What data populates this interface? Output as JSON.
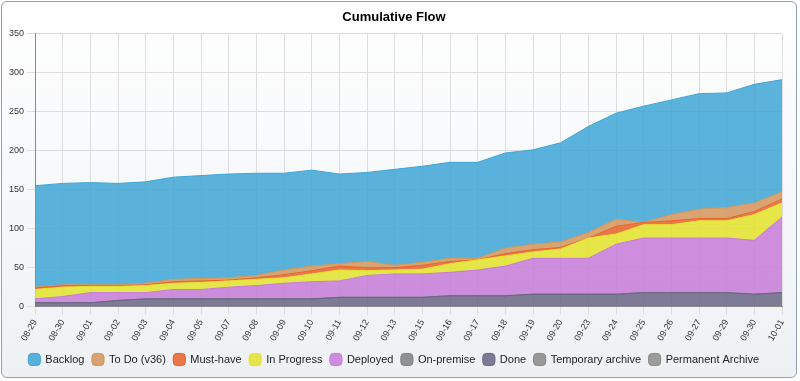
{
  "chart_data": {
    "type": "area",
    "title": "Cumulative Flow",
    "stacked": true,
    "grid": true,
    "legend": "bottom",
    "categories": [
      "08-29",
      "08-30",
      "09-01",
      "09-02",
      "09-03",
      "09-04",
      "09-05",
      "09-07",
      "09-08",
      "09-09",
      "09-10",
      "09-11",
      "09-12",
      "09-13",
      "09-15",
      "09-16",
      "09-17",
      "09-18",
      "09-19",
      "09-20",
      "09-23",
      "09-24",
      "09-25",
      "09-26",
      "09-27",
      "09-29",
      "09-30",
      "10-01"
    ],
    "ylim": [
      0,
      350
    ],
    "yticks": [
      0,
      50,
      100,
      150,
      200,
      250,
      300,
      350
    ],
    "series": [
      {
        "name": "Backlog",
        "color": "#3ea6d6",
        "values": [
          130,
          130,
          131,
          130,
          130,
          131,
          132,
          133,
          131,
          124,
          123,
          115,
          114,
          123,
          123,
          123,
          123,
          122,
          121,
          127,
          136,
          136,
          149,
          147,
          148,
          147,
          152,
          144
        ]
      },
      {
        "name": "To Do (v36)",
        "color": "#d4955a",
        "values": [
          1,
          1,
          1,
          1,
          2,
          3,
          3,
          3,
          3,
          6,
          6,
          3,
          8,
          3,
          4,
          4,
          2,
          7,
          7,
          7,
          7,
          9,
          0,
          8,
          12,
          14,
          11,
          9
        ]
      },
      {
        "name": "Must-have",
        "color": "#e8622a",
        "values": [
          2,
          2,
          1,
          1,
          1,
          2,
          2,
          1,
          2,
          4,
          4,
          5,
          4,
          3,
          5,
          3,
          0,
          3,
          3,
          2,
          0,
          10,
          3,
          5,
          3,
          3,
          4,
          5
        ]
      },
      {
        "name": "In Progress",
        "color": "#e3e32a",
        "values": [
          12,
          12,
          8,
          8,
          9,
          8,
          9,
          8,
          8,
          7,
          10,
          14,
          6,
          5,
          6,
          11,
          13,
          13,
          8,
          12,
          26,
          13,
          17,
          17,
          22,
          22,
          33,
          18
        ]
      },
      {
        "name": "Deployed",
        "color": "#c77ad8",
        "values": [
          5,
          8,
          13,
          10,
          8,
          12,
          12,
          15,
          17,
          20,
          22,
          21,
          28,
          30,
          30,
          30,
          33,
          38,
          46,
          46,
          46,
          64,
          70,
          70,
          70,
          70,
          69,
          97
        ]
      },
      {
        "name": "On-premise",
        "color": "#808080",
        "values": [
          0,
          0,
          0,
          0,
          0,
          0,
          0,
          0,
          0,
          0,
          0,
          0,
          0,
          0,
          0,
          0,
          0,
          0,
          0,
          0,
          0,
          0,
          0,
          0,
          0,
          0,
          0,
          0
        ]
      },
      {
        "name": "Done",
        "color": "#6a6585",
        "values": [
          5,
          5,
          5,
          8,
          10,
          10,
          10,
          10,
          10,
          10,
          10,
          12,
          12,
          12,
          12,
          14,
          14,
          14,
          16,
          16,
          16,
          16,
          18,
          18,
          18,
          18,
          16,
          18
        ]
      },
      {
        "name": "Temporary archive",
        "color": "#888888",
        "values": [
          0,
          0,
          0,
          0,
          0,
          0,
          0,
          0,
          0,
          0,
          0,
          0,
          0,
          0,
          0,
          0,
          0,
          0,
          0,
          0,
          0,
          0,
          0,
          0,
          0,
          0,
          0,
          0
        ]
      },
      {
        "name": "Permanent Archive",
        "color": "#8c8c8c",
        "values": [
          0,
          0,
          0,
          0,
          0,
          0,
          0,
          0,
          0,
          0,
          0,
          0,
          0,
          0,
          0,
          0,
          0,
          0,
          0,
          0,
          0,
          0,
          0,
          0,
          0,
          0,
          0,
          0
        ]
      }
    ]
  }
}
